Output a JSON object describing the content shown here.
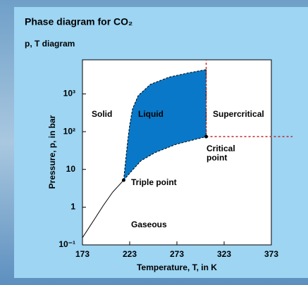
{
  "chart_data": {
    "type": "line",
    "title": "Phase diagram for CO₂",
    "subtitle": "p, T diagram",
    "xlabel": "Temperature, T, in K",
    "ylabel": "Pressure, p, in bar",
    "xlim": [
      173,
      373
    ],
    "xticks": [
      173,
      223,
      273,
      323,
      373
    ],
    "ylim": [
      0.1,
      8000
    ],
    "ylog": true,
    "yticks": [
      {
        "value": 0.1,
        "label": "10⁻¹"
      },
      1,
      10,
      {
        "value": 100,
        "label": "10²"
      },
      {
        "value": 1000,
        "label": "10³"
      }
    ],
    "series": [
      {
        "color": "#000000",
        "dashed": false,
        "x": [
          173,
          185,
          195,
          205,
          216.6
        ],
        "values": [
          0.155,
          0.45,
          1.1,
          2.5,
          5.18
        ]
      },
      {
        "color": "#000000",
        "dashed": true,
        "x": [
          216.6,
          219,
          221,
          223,
          226,
          232,
          245,
          265,
          285,
          304
        ],
        "values": [
          5.18,
          20,
          60,
          150,
          400,
          900,
          1800,
          2800,
          3600,
          4400
        ]
      },
      {
        "color": "#000000",
        "dashed": true,
        "x": [
          216.6,
          225,
          235,
          250,
          272,
          290,
          304
        ],
        "values": [
          5.18,
          9,
          17,
          28,
          46,
          60,
          73.8
        ]
      }
    ],
    "region_fill": "#0a78c8",
    "points": {
      "x": [
        216.6,
        304
      ],
      "values": [
        5.18,
        73.8
      ],
      "color": "#000000"
    },
    "critical_lines_color": "#c0282d",
    "annotations": [
      "Solid",
      "Liquid",
      "Supercritical",
      "Critical",
      "point",
      "Triple point",
      "Gaseous"
    ]
  }
}
